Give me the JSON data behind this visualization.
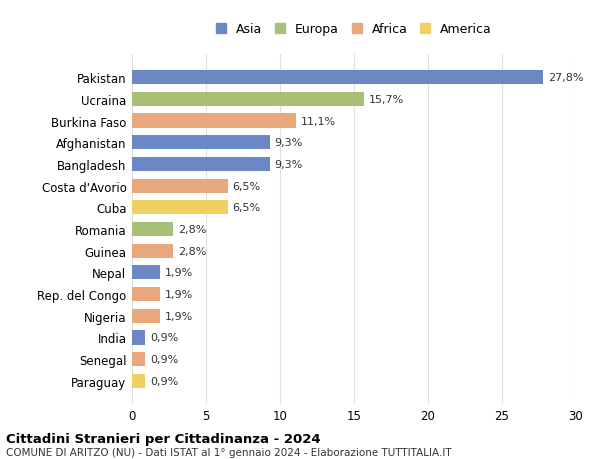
{
  "categories": [
    "Pakistan",
    "Ucraina",
    "Burkina Faso",
    "Afghanistan",
    "Bangladesh",
    "Costa d'Avorio",
    "Cuba",
    "Romania",
    "Guinea",
    "Nepal",
    "Rep. del Congo",
    "Nigeria",
    "India",
    "Senegal",
    "Paraguay"
  ],
  "values": [
    27.8,
    15.7,
    11.1,
    9.3,
    9.3,
    6.5,
    6.5,
    2.8,
    2.8,
    1.9,
    1.9,
    1.9,
    0.9,
    0.9,
    0.9
  ],
  "labels": [
    "27,8%",
    "15,7%",
    "11,1%",
    "9,3%",
    "9,3%",
    "6,5%",
    "6,5%",
    "2,8%",
    "2,8%",
    "1,9%",
    "1,9%",
    "1,9%",
    "0,9%",
    "0,9%",
    "0,9%"
  ],
  "continents": [
    "Asia",
    "Europa",
    "Africa",
    "Asia",
    "Asia",
    "Africa",
    "America",
    "Europa",
    "Africa",
    "Asia",
    "Africa",
    "Africa",
    "Asia",
    "Africa",
    "America"
  ],
  "colors": {
    "Asia": "#6b88c4",
    "Europa": "#a8bf78",
    "Africa": "#e8a87c",
    "America": "#f0d060"
  },
  "legend_order": [
    "Asia",
    "Europa",
    "Africa",
    "America"
  ],
  "title": "Cittadini Stranieri per Cittadinanza - 2024",
  "subtitle": "COMUNE DI ARITZO (NU) - Dati ISTAT al 1° gennaio 2024 - Elaborazione TUTTITALIA.IT",
  "xlim": [
    0,
    30
  ],
  "xticks": [
    0,
    5,
    10,
    15,
    20,
    25,
    30
  ],
  "background_color": "#ffffff",
  "grid_color": "#e0e0e0"
}
